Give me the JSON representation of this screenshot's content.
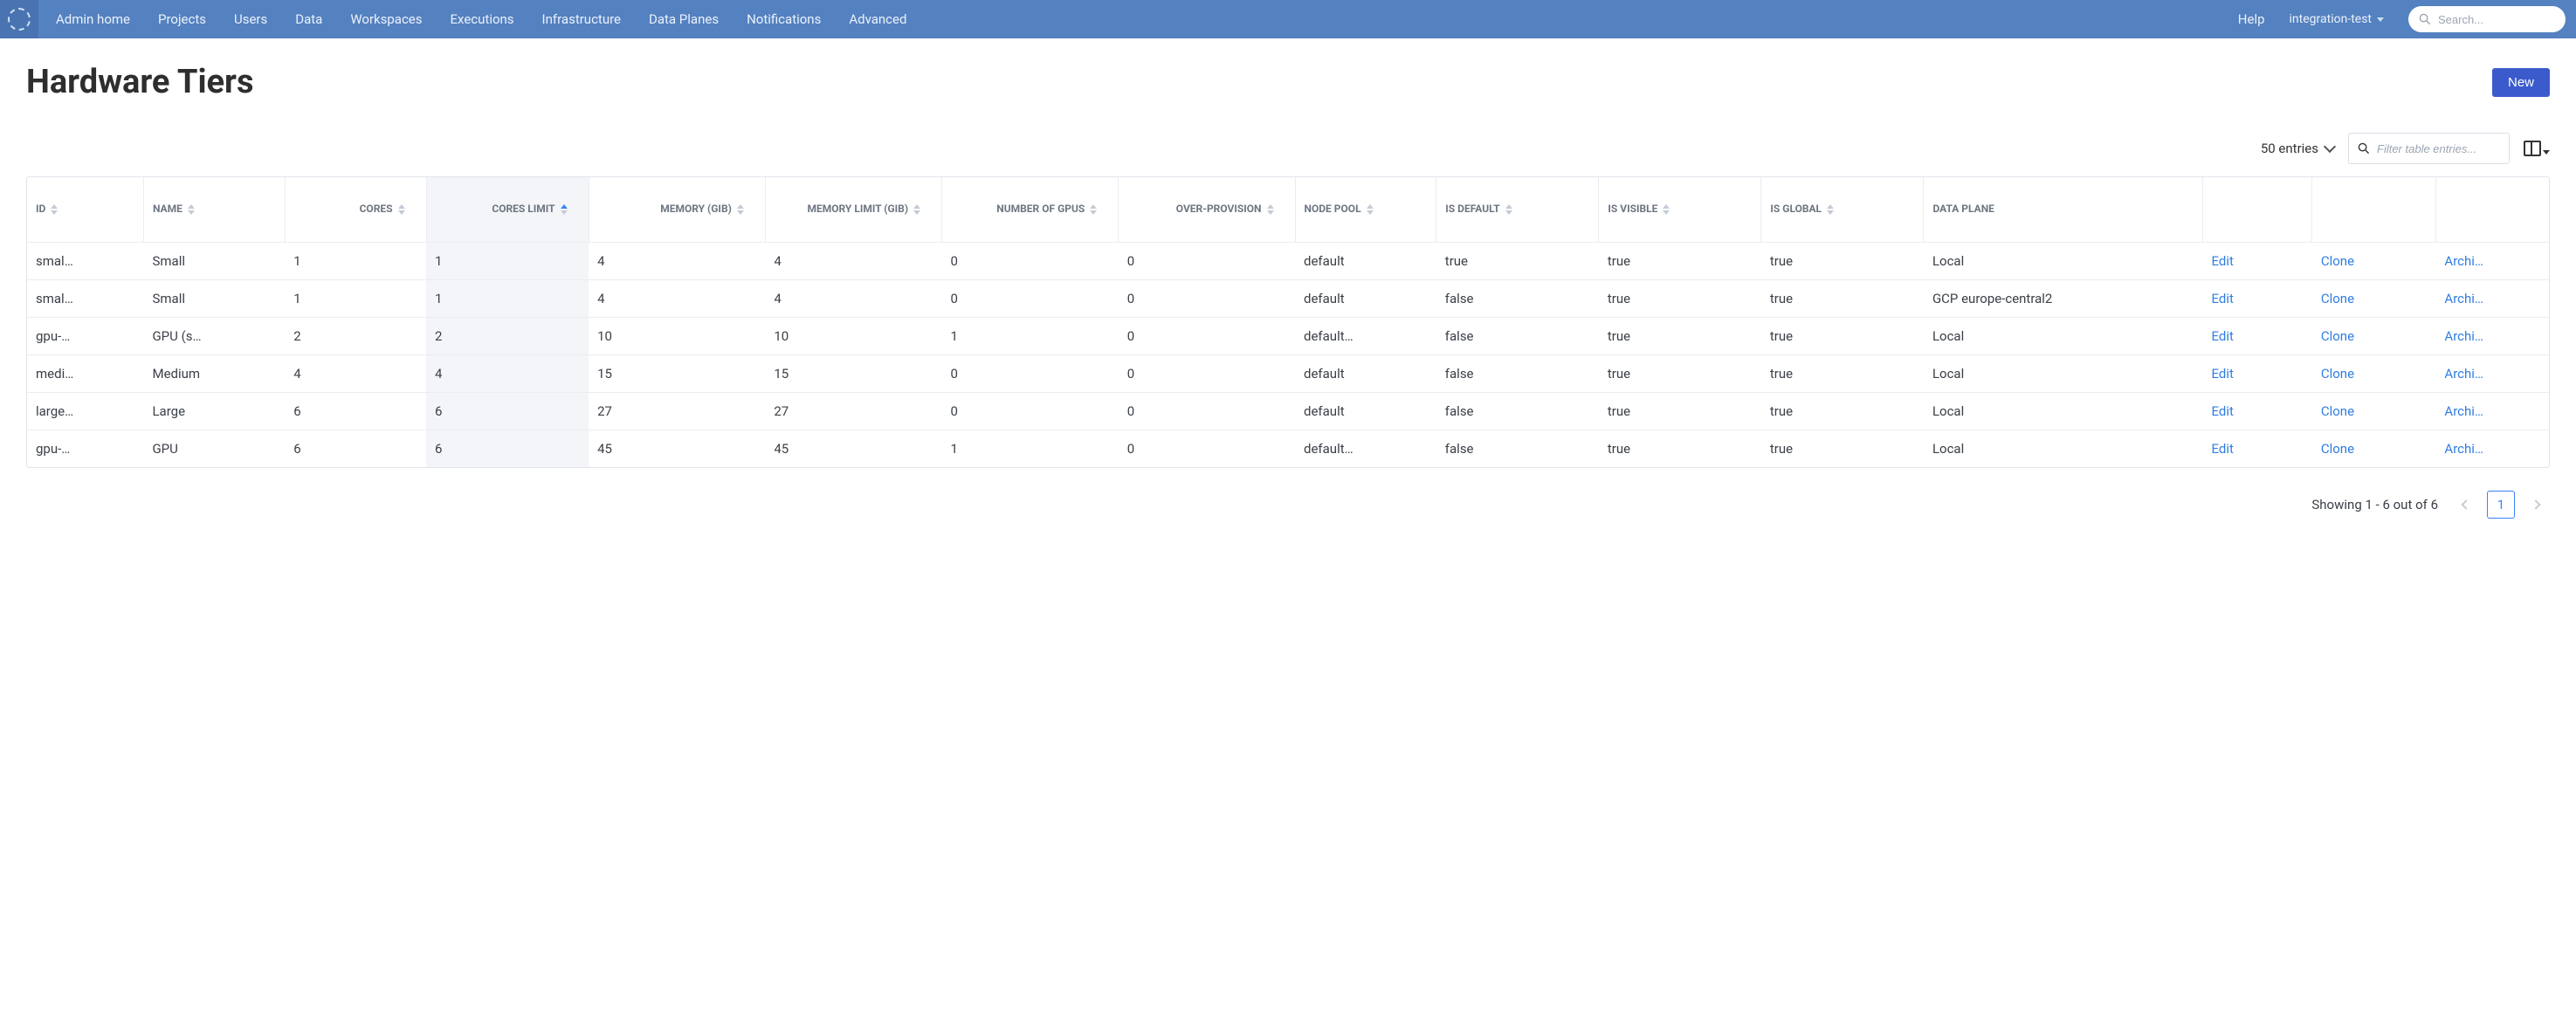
{
  "colors": {
    "navbar_bg": "#5481c0",
    "primary_button_bg": "#3b5bcc",
    "link_color": "#2f7de1",
    "sorted_col_bg": "#f3f5f8"
  },
  "nav": {
    "links": [
      "Admin home",
      "Projects",
      "Users",
      "Data",
      "Workspaces",
      "Executions",
      "Infrastructure",
      "Data Planes",
      "Notifications",
      "Advanced"
    ],
    "help": "Help",
    "user_menu": "integration-test",
    "search_placeholder": "Search..."
  },
  "page": {
    "title": "Hardware Tiers",
    "new_button": "New"
  },
  "toolbar": {
    "entries_label": "50 entries",
    "filter_placeholder": "Filter table entries..."
  },
  "table": {
    "columns": [
      {
        "key": "id",
        "label": "ID",
        "align": "left",
        "sortable": true
      },
      {
        "key": "name",
        "label": "NAME",
        "align": "left",
        "sortable": true
      },
      {
        "key": "cores",
        "label": "CORES",
        "align": "right",
        "sortable": true
      },
      {
        "key": "cores_lim",
        "label": "CORES LIMIT",
        "align": "right",
        "sortable": true,
        "sorted": "asc"
      },
      {
        "key": "mem",
        "label": "MEMORY (GIB)",
        "align": "right",
        "sortable": true
      },
      {
        "key": "mem_lim",
        "label": "MEMORY LIMIT (GIB)",
        "align": "right",
        "sortable": true
      },
      {
        "key": "gpus",
        "label": "NUMBER OF GPUS",
        "align": "right",
        "sortable": true
      },
      {
        "key": "over",
        "label": "OVER-PROVISION",
        "align": "right",
        "sortable": true
      },
      {
        "key": "pool",
        "label": "NODE POOL",
        "align": "left",
        "sortable": true
      },
      {
        "key": "def",
        "label": "IS DEFAULT",
        "align": "left",
        "sortable": true
      },
      {
        "key": "vis",
        "label": "IS VISIBLE",
        "align": "left",
        "sortable": true
      },
      {
        "key": "glob",
        "label": "IS GLOBAL",
        "align": "left",
        "sortable": true
      },
      {
        "key": "plane",
        "label": "DATA PLANE",
        "align": "left",
        "sortable": false
      }
    ],
    "actions": {
      "edit": "Edit",
      "clone": "Clone",
      "archive": "Archi…"
    },
    "rows": [
      {
        "id": "smal…",
        "name": "Small",
        "cores": 1,
        "cores_lim": 1,
        "mem": 4,
        "mem_lim": 4,
        "gpus": 0,
        "over": 0,
        "pool": "default",
        "def": "true",
        "vis": "true",
        "glob": "true",
        "plane": "Local"
      },
      {
        "id": "smal…",
        "name": "Small",
        "cores": 1,
        "cores_lim": 1,
        "mem": 4,
        "mem_lim": 4,
        "gpus": 0,
        "over": 0,
        "pool": "default",
        "def": "false",
        "vis": "true",
        "glob": "true",
        "plane": "GCP europe-central2"
      },
      {
        "id": "gpu-…",
        "name": "GPU (s…",
        "cores": 2,
        "cores_lim": 2,
        "mem": 10,
        "mem_lim": 10,
        "gpus": 1,
        "over": 0,
        "pool": "default…",
        "def": "false",
        "vis": "true",
        "glob": "true",
        "plane": "Local"
      },
      {
        "id": "medi…",
        "name": "Medium",
        "cores": 4,
        "cores_lim": 4,
        "mem": 15,
        "mem_lim": 15,
        "gpus": 0,
        "over": 0,
        "pool": "default",
        "def": "false",
        "vis": "true",
        "glob": "true",
        "plane": "Local"
      },
      {
        "id": "large…",
        "name": "Large",
        "cores": 6,
        "cores_lim": 6,
        "mem": 27,
        "mem_lim": 27,
        "gpus": 0,
        "over": 0,
        "pool": "default",
        "def": "false",
        "vis": "true",
        "glob": "true",
        "plane": "Local"
      },
      {
        "id": "gpu-…",
        "name": "GPU",
        "cores": 6,
        "cores_lim": 6,
        "mem": 45,
        "mem_lim": 45,
        "gpus": 1,
        "over": 0,
        "pool": "default…",
        "def": "false",
        "vis": "true",
        "glob": "true",
        "plane": "Local"
      }
    ]
  },
  "pagination": {
    "summary": "Showing 1 - 6 out of 6",
    "current_page": "1"
  }
}
